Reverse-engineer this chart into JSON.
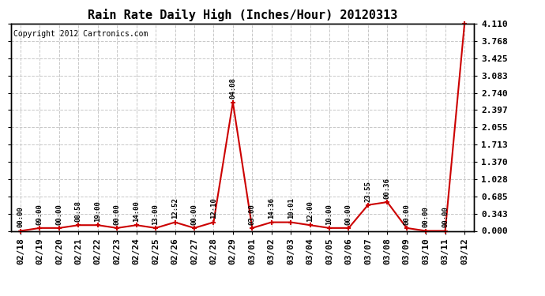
{
  "title": "Rain Rate Daily High (Inches/Hour) 20120313",
  "copyright": "Copyright 2012 Cartronics.com",
  "x_labels": [
    "02/18",
    "02/19",
    "02/20",
    "02/21",
    "02/22",
    "02/23",
    "02/24",
    "02/25",
    "02/26",
    "02/27",
    "02/28",
    "02/29",
    "03/01",
    "03/02",
    "03/03",
    "03/04",
    "03/05",
    "03/06",
    "03/07",
    "03/08",
    "03/09",
    "03/10",
    "03/11",
    "03/12"
  ],
  "y_values": [
    0.0,
    0.057,
    0.057,
    0.114,
    0.114,
    0.057,
    0.114,
    0.057,
    0.171,
    0.057,
    0.171,
    2.55,
    0.057,
    0.171,
    0.171,
    0.114,
    0.057,
    0.057,
    0.514,
    0.571,
    0.057,
    0.0,
    0.0,
    4.11
  ],
  "time_labels": [
    "00:00",
    "09:00",
    "00:00",
    "08:58",
    "19:00",
    "00:00",
    "14:00",
    "13:00",
    "12:52",
    "00:00",
    "12:10",
    "04:08",
    "03:00",
    "14:36",
    "10:01",
    "12:00",
    "10:00",
    "00:00",
    "23:55",
    "00:36",
    "00:00",
    "00:00",
    "00:00",
    ""
  ],
  "ylim": [
    0.0,
    4.11
  ],
  "yticks": [
    0.0,
    0.343,
    0.685,
    1.028,
    1.37,
    1.713,
    2.055,
    2.397,
    2.74,
    3.083,
    3.425,
    3.768,
    4.11
  ],
  "line_color": "#cc0000",
  "marker_color": "#cc0000",
  "bg_color": "#ffffff",
  "grid_color": "#c8c8c8",
  "title_fontsize": 11,
  "copyright_fontsize": 7,
  "tick_label_fontsize": 8,
  "annotation_fontsize": 6.5
}
